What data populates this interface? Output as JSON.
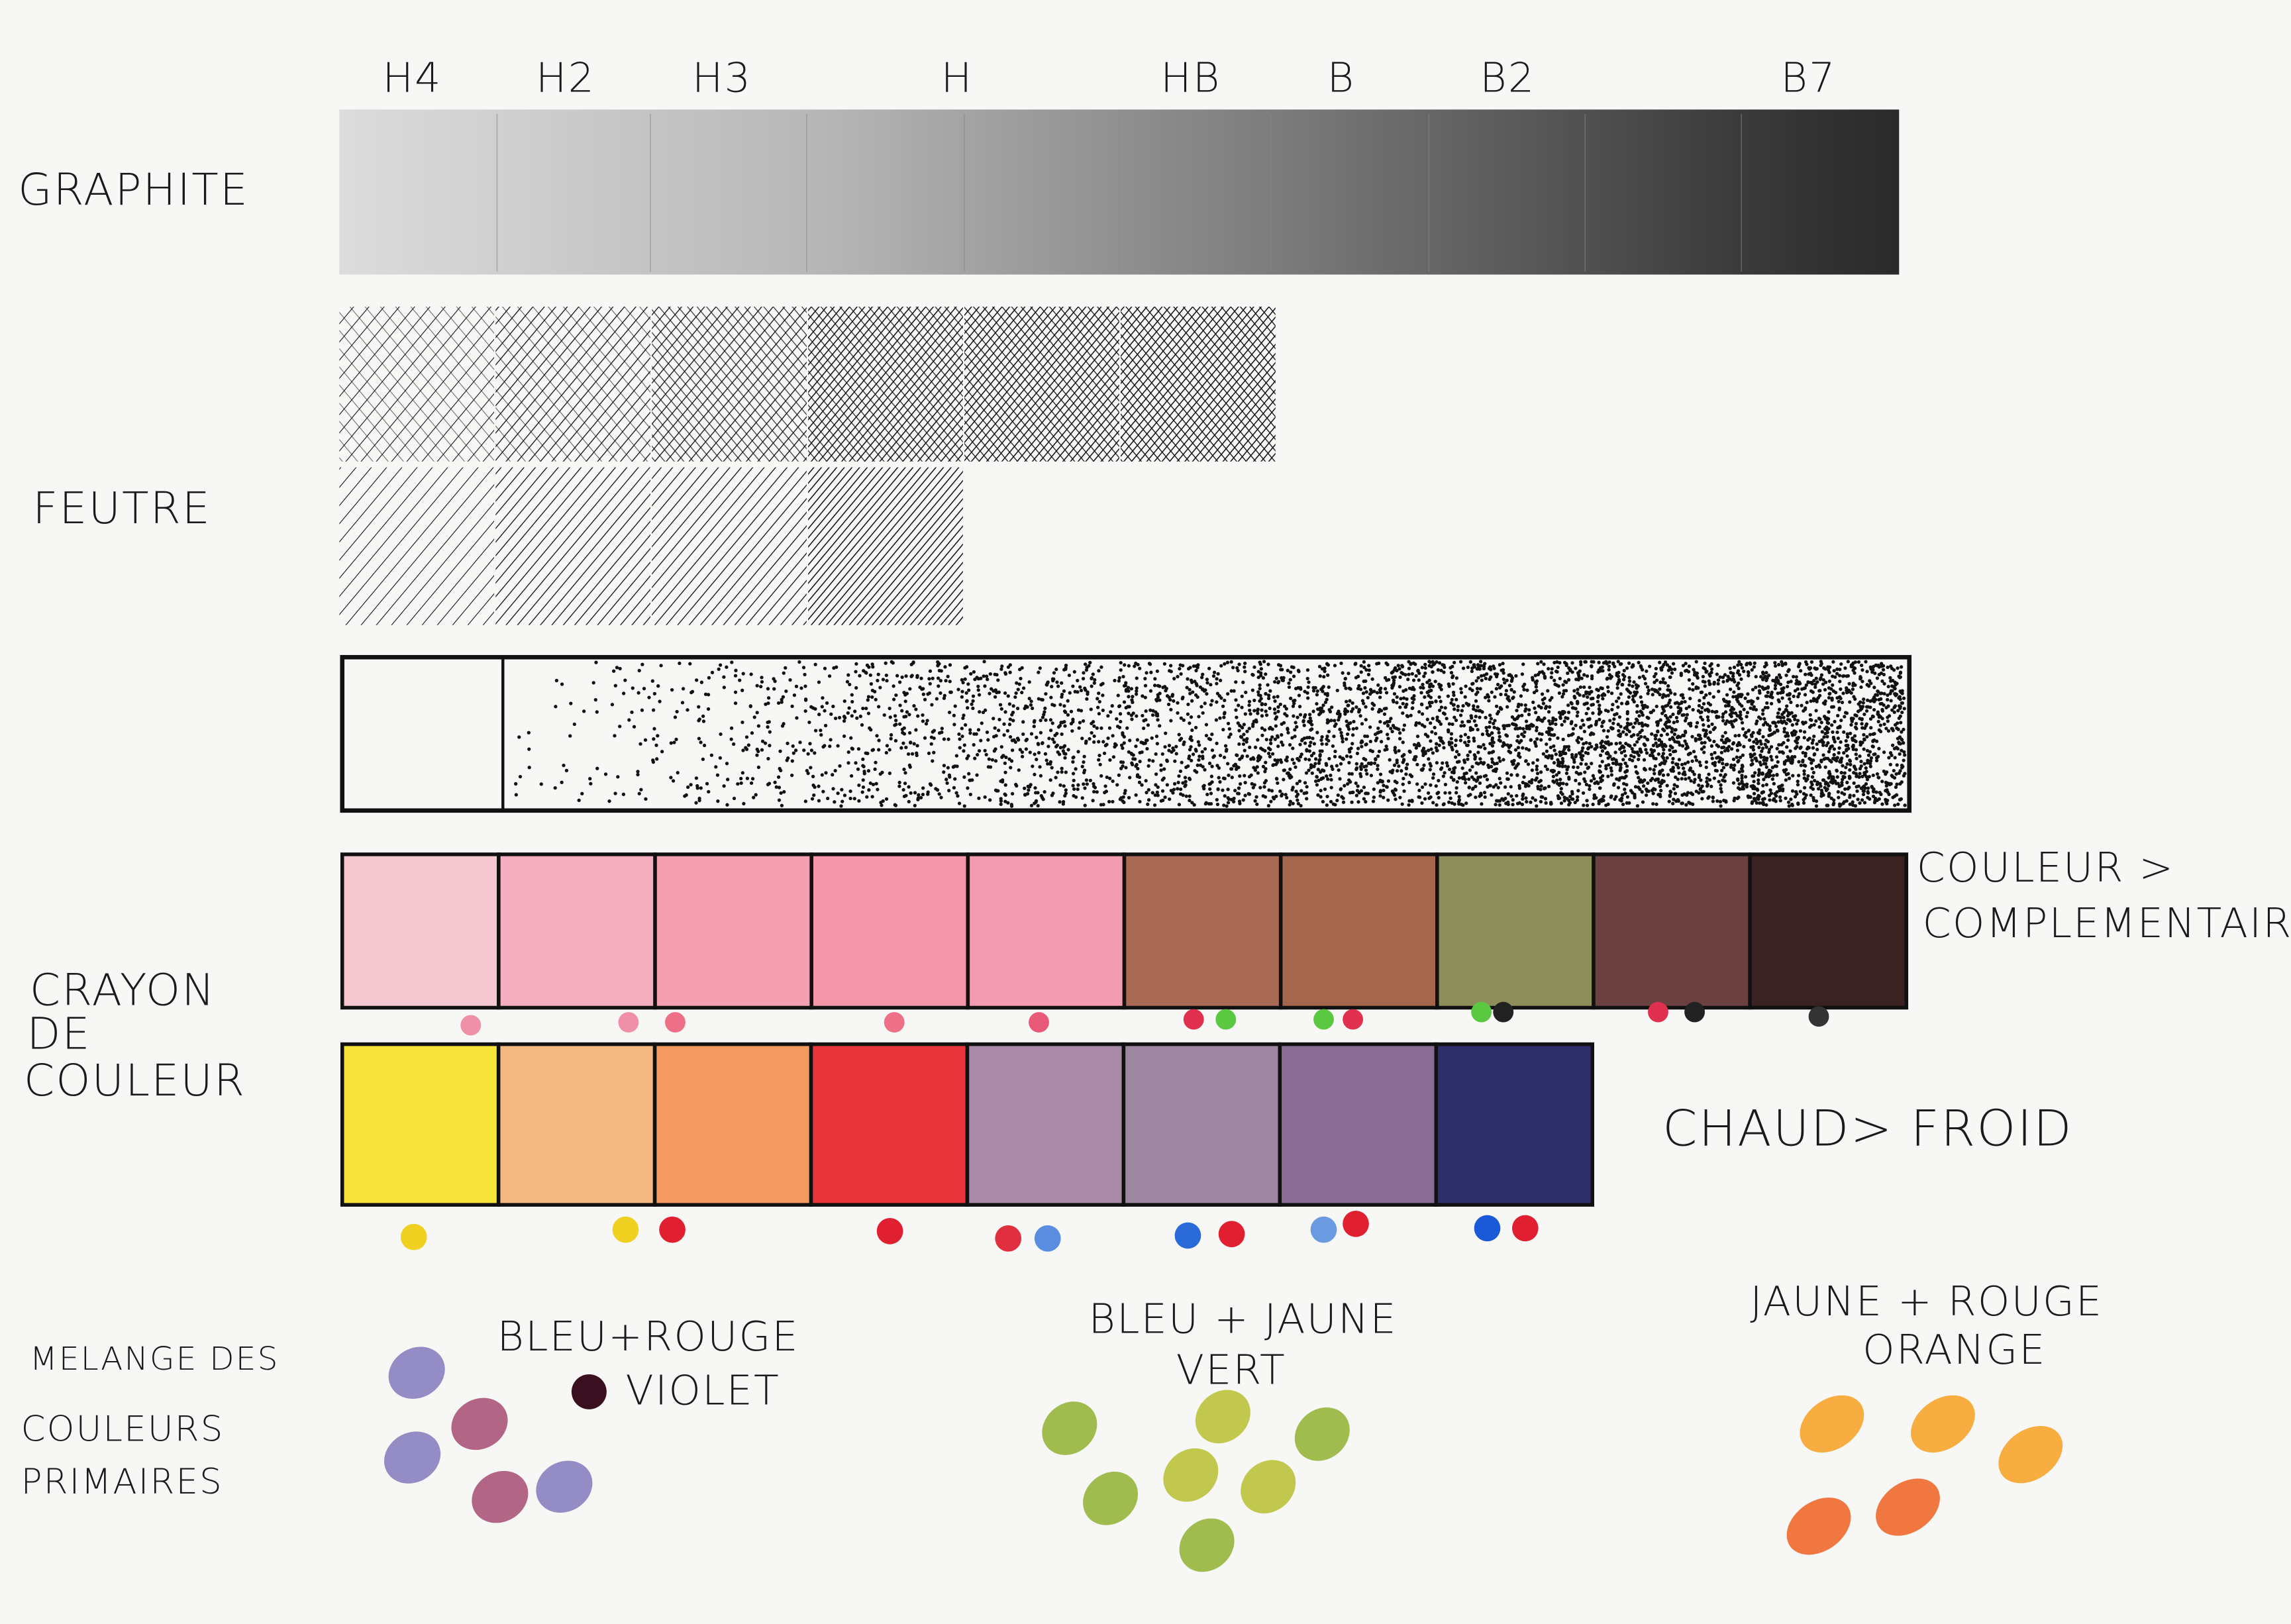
{
  "grades": [
    "H4",
    "H2",
    "H3",
    "H",
    "HB",
    "B",
    "B2",
    "B7"
  ],
  "graphite": {
    "label": "GRAPHITE"
  },
  "feutre": {
    "label": "FEUTRE"
  },
  "crayon": {
    "label": [
      "CRAYON",
      "DE",
      "COULEUR"
    ],
    "complementary": [
      "COULEUR >",
      "COMPLEMENTAIRE"
    ],
    "warm_cold": "CHAUD> FROID"
  },
  "melange": {
    "label": [
      "MELANGE DES",
      "COULEURS",
      "PRIMAIRES"
    ],
    "mixes": [
      {
        "formula": "BLEU+ROUGE",
        "result": "VIOLET"
      },
      {
        "formula": "BLEU + JAUNE",
        "result": "VERT"
      },
      {
        "formula": "JAUNE + ROUGE",
        "result": "ORANGE"
      }
    ]
  }
}
